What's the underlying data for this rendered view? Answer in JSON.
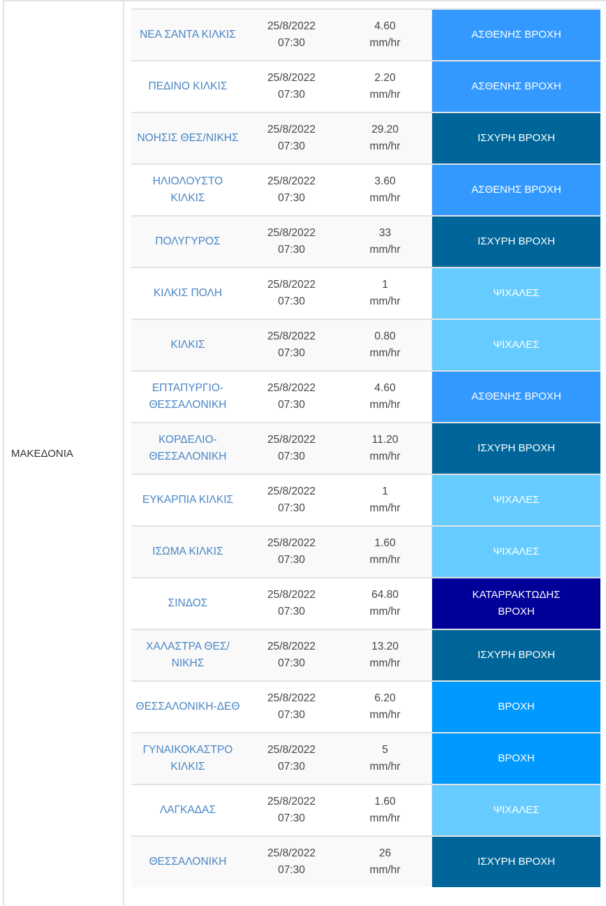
{
  "region": "ΜΑΚΕΔΟΝΙΑ",
  "unit": "mm/hr",
  "level_colors": {
    "ΑΣΘΕΝΗΣ ΒΡΟΧΗ": "#3399ff",
    "ΙΣΧΥΡΗ ΒΡΟΧΗ": "#006699",
    "ΨΙΧΑΛΕΣ": "#66ccff",
    "ΒΡΟΧΗ": "#0099ff",
    "ΚΑΤΑΡΡΑΚΤΩΔΗΣ ΒΡΟΧΗ": "#000099"
  },
  "rows": [
    {
      "station": "ΝΕΑ ΣΑΝΤΑ ΚΙΛΚΙΣ",
      "date": "25/8/2022",
      "time": "07:30",
      "value": "4.60",
      "level": "ΑΣΘΕΝΗΣ ΒΡΟΧΗ"
    },
    {
      "station": "ΠΕΔΙΝΟ ΚΙΛΚΙΣ",
      "date": "25/8/2022",
      "time": "07:30",
      "value": "2.20",
      "level": "ΑΣΘΕΝΗΣ ΒΡΟΧΗ"
    },
    {
      "station": "ΝΟΗΣΙΣ ΘΕΣ/ΝΙΚΗΣ",
      "date": "25/8/2022",
      "time": "07:30",
      "value": "29.20",
      "level": "ΙΣΧΥΡΗ ΒΡΟΧΗ"
    },
    {
      "station": "ΗΛΙΟΛΟΥΣΤΟ ΚΙΛΚΙΣ",
      "date": "25/8/2022",
      "time": "07:30",
      "value": "3.60",
      "level": "ΑΣΘΕΝΗΣ ΒΡΟΧΗ"
    },
    {
      "station": "ΠΟΛΥΓΥΡΟΣ",
      "date": "25/8/2022",
      "time": "07:30",
      "value": "33",
      "level": "ΙΣΧΥΡΗ ΒΡΟΧΗ"
    },
    {
      "station": "ΚΙΛΚΙΣ ΠΟΛΗ",
      "date": "25/8/2022",
      "time": "07:30",
      "value": "1",
      "level": "ΨΙΧΑΛΕΣ"
    },
    {
      "station": "ΚΙΛΚΙΣ",
      "date": "25/8/2022",
      "time": "07:30",
      "value": "0.80",
      "level": "ΨΙΧΑΛΕΣ"
    },
    {
      "station": "ΕΠΤΑΠΥΡΓΙΟ-ΘΕΣΣΑΛΟΝΙΚΗ",
      "date": "25/8/2022",
      "time": "07:30",
      "value": "4.60",
      "level": "ΑΣΘΕΝΗΣ ΒΡΟΧΗ"
    },
    {
      "station": "ΚΟΡΔΕΛΙΟ-ΘΕΣΣΑΛΟΝΙΚΗ",
      "date": "25/8/2022",
      "time": "07:30",
      "value": "11.20",
      "level": "ΙΣΧΥΡΗ ΒΡΟΧΗ"
    },
    {
      "station": "ΕΥΚΑΡΠΙΑ ΚΙΛΚΙΣ",
      "date": "25/8/2022",
      "time": "07:30",
      "value": "1",
      "level": "ΨΙΧΑΛΕΣ"
    },
    {
      "station": "ΙΣΩΜΑ ΚΙΛΚΙΣ",
      "date": "25/8/2022",
      "time": "07:30",
      "value": "1.60",
      "level": "ΨΙΧΑΛΕΣ"
    },
    {
      "station": "ΣΙΝΔΟΣ",
      "date": "25/8/2022",
      "time": "07:30",
      "value": "64.80",
      "level": "ΚΑΤΑΡΡΑΚΤΩΔΗΣ ΒΡΟΧΗ"
    },
    {
      "station": "ΧΑΛΑΣΤΡΑ ΘΕΣ/ΝΙΚΗΣ",
      "date": "25/8/2022",
      "time": "07:30",
      "value": "13.20",
      "level": "ΙΣΧΥΡΗ ΒΡΟΧΗ"
    },
    {
      "station": "ΘΕΣΣΑΛΟΝΙΚΗ-ΔΕΘ",
      "date": "25/8/2022",
      "time": "07:30",
      "value": "6.20",
      "level": "ΒΡΟΧΗ"
    },
    {
      "station": "ΓΥΝΑΙΚΟΚΑΣΤΡΟ ΚΙΛΚΙΣ",
      "date": "25/8/2022",
      "time": "07:30",
      "value": "5",
      "level": "ΒΡΟΧΗ"
    },
    {
      "station": "ΛΑΓΚΑΔΑΣ",
      "date": "25/8/2022",
      "time": "07:30",
      "value": "1.60",
      "level": "ΨΙΧΑΛΕΣ"
    },
    {
      "station": "ΘΕΣΣΑΛΟΝΙΚΗ",
      "date": "25/8/2022",
      "time": "07:30",
      "value": "26",
      "level": "ΙΣΧΥΡΗ ΒΡΟΧΗ"
    }
  ]
}
